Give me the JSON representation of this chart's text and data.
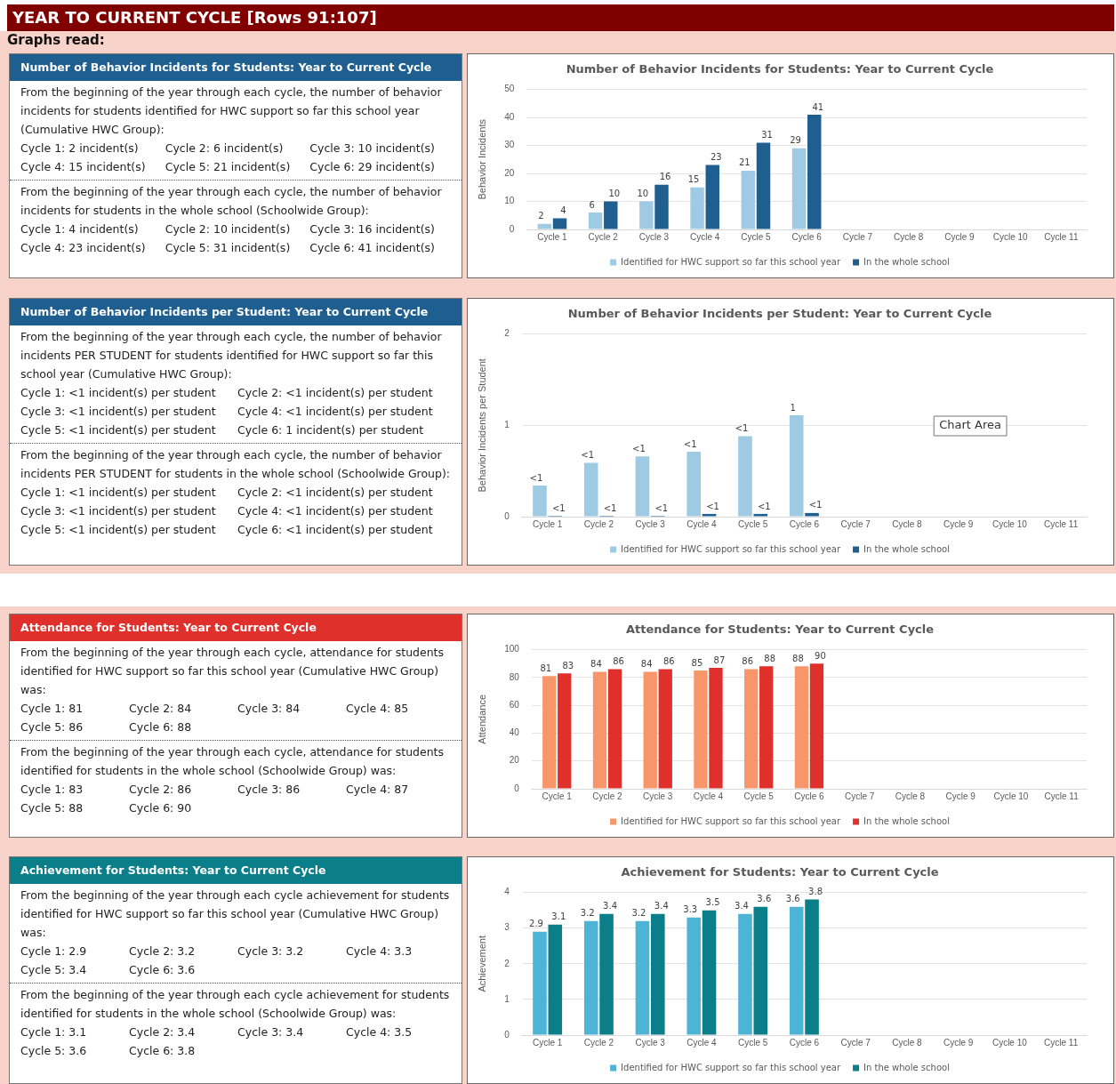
{
  "chart_data": [
    {
      "type": "other",
      "title": "YEAR TO CURRENT CYCLE [Rows 91:107]",
      "subtitle": "Graphs read:"
    },
    {
      "type": "other",
      "title": "Number of Behavior Incidents for Students: Year to Current Cycle",
      "annotations": [
        "From the beginning of the year through each cycle, the number of behavior incidents for students identified for HWC support so far this school year (Cumulative HWC Group):",
        "Cycle 1: 2 incident(s)",
        "Cycle 2: 6 incident(s)",
        "Cycle 3: 10 incident(s)",
        "Cycle 4: 15 incident(s)",
        "Cycle 5: 21 incident(s)",
        "Cycle 6: 29 incident(s)",
        "From the beginning of the year through each cycle, the number of behavior incidents for students in the whole school (Schoolwide Group):",
        "Cycle 1: 4 incident(s)",
        "Cycle 2: 10 incident(s)",
        "Cycle 3: 16 incident(s)",
        "Cycle 4: 23 incident(s)",
        "Cycle 5: 31 incident(s)",
        "Cycle 6: 41 incident(s)"
      ]
    },
    {
      "type": "bar",
      "title": "Number of Behavior Incidents for Students: Year to Current Cycle",
      "ylabel": "Behavior Incidents",
      "categories": [
        "Cycle 1",
        "Cycle 2",
        "Cycle 3",
        "Cycle 4",
        "Cycle 5",
        "Cycle 6",
        "Cycle 7",
        "Cycle 8",
        "Cycle 9",
        "Cycle 10",
        "Cycle 11"
      ],
      "series": [
        {
          "name": "Identified for HWC support so far this school year",
          "color": "#9ecae4",
          "values": [
            2,
            6,
            10,
            15,
            21,
            29,
            null,
            null,
            null,
            null,
            null
          ]
        },
        {
          "name": "In the whole school",
          "color": "#1f5f8f",
          "values": [
            4,
            10,
            16,
            23,
            31,
            41,
            null,
            null,
            null,
            null,
            null
          ]
        }
      ],
      "ylim": [
        0,
        50
      ],
      "yticks": [
        0,
        10,
        20,
        30,
        40,
        50
      ],
      "grid": "y",
      "legend": "bottom",
      "data_labels": true
    },
    {
      "type": "other",
      "title": "Number of Behavior Incidents per Student: Year to Current Cycle",
      "annotations": [
        "From the beginning of the year through each cycle, the number of behavior incidents PER STUDENT for students identified for HWC support so far this school year (Cumulative HWC Group):",
        "Cycle 1: <1 incident(s) per student",
        "Cycle 2: <1 incident(s) per student",
        "Cycle 3: <1 incident(s) per student",
        "Cycle 4: <1 incident(s) per student",
        "Cycle 5: <1 incident(s) per student",
        "Cycle 6: 1 incident(s) per student",
        "From the beginning of the year through each cycle, the number of behavior incidents PER STUDENT for students in the whole school (Schoolwide Group):",
        "Cycle 1: <1 incident(s) per student",
        "Cycle 2: <1 incident(s) per student",
        "Cycle 3: <1 incident(s) per student",
        "Cycle 4: <1 incident(s) per student",
        "Cycle 5: <1 incident(s) per student",
        "Cycle 6: <1 incident(s) per student"
      ]
    },
    {
      "type": "bar",
      "title": "Number of Behavior Incidents per Student: Year to Current Cycle",
      "ylabel": "Behavior Incidents per Student",
      "categories": [
        "Cycle 1",
        "Cycle 2",
        "Cycle 3",
        "Cycle 4",
        "Cycle 5",
        "Cycle 6",
        "Cycle 7",
        "Cycle 8",
        "Cycle 9",
        "Cycle 10",
        "Cycle 11"
      ],
      "series": [
        {
          "name": "Identified for HWC support so far this school year",
          "color": "#9ecae4",
          "values": [
            0.34,
            0.59,
            0.66,
            0.71,
            0.88,
            1.11,
            null,
            null,
            null,
            null,
            null
          ],
          "value_labels": [
            "<1",
            "<1",
            "<1",
            "<1",
            "<1",
            "1",
            null,
            null,
            null,
            null,
            null
          ]
        },
        {
          "name": "In the whole school",
          "color": "#1f5f8f",
          "values": [
            0.01,
            0.01,
            0.01,
            0.03,
            0.03,
            0.04,
            null,
            null,
            null,
            null,
            null
          ],
          "value_labels": [
            "<1",
            "<1",
            "<1",
            "<1",
            "<1",
            "<1",
            null,
            null,
            null,
            null,
            null
          ]
        }
      ],
      "ylim": [
        0,
        2
      ],
      "yticks": [
        0,
        1,
        2
      ],
      "grid": "y",
      "legend": "bottom",
      "annotations": [
        "Chart Area"
      ]
    },
    {
      "type": "other",
      "title": "Attendance for Students: Year to Current Cycle",
      "annotations": [
        "From the beginning of the year through each cycle, attendance for students identified for HWC support so far this school year (Cumulative HWC Group) was:",
        "Cycle 1: 81",
        "Cycle 2: 84",
        "Cycle 3: 84",
        "Cycle 4: 85",
        "Cycle 5: 86",
        "Cycle 6: 88",
        "From the beginning of the year through each cycle, attendance for students identified for students in the whole school (Schoolwide Group) was:",
        "Cycle 1: 83",
        "Cycle 2: 86",
        "Cycle 3: 86",
        "Cycle 4: 87",
        "Cycle 5: 88",
        "Cycle 6: 90"
      ]
    },
    {
      "type": "bar",
      "title": "Attendance for Students: Year to Current Cycle",
      "ylabel": "Attendance",
      "categories": [
        "Cycle 1",
        "Cycle 2",
        "Cycle 3",
        "Cycle 4",
        "Cycle 5",
        "Cycle 6",
        "Cycle 7",
        "Cycle 8",
        "Cycle 9",
        "Cycle 10",
        "Cycle 11"
      ],
      "series": [
        {
          "name": "Identified for HWC support so far this school year",
          "color": "#f7966b",
          "values": [
            81,
            84,
            84,
            85,
            86,
            88,
            null,
            null,
            null,
            null,
            null
          ]
        },
        {
          "name": "In the whole school",
          "color": "#e0302b",
          "values": [
            83,
            86,
            86,
            87,
            88,
            90,
            null,
            null,
            null,
            null,
            null
          ]
        }
      ],
      "ylim": [
        0,
        100
      ],
      "yticks": [
        0,
        20,
        40,
        60,
        80,
        100
      ],
      "grid": "y",
      "legend": "bottom",
      "data_labels": true
    },
    {
      "type": "other",
      "title": "Achievement for Students: Year to Current Cycle",
      "annotations": [
        "From the beginning of the year through each cycle achievement for students identified for HWC support so far this school year (Cumulative HWC Group) was:",
        "Cycle 1: 2.9",
        "Cycle 2: 3.2",
        "Cycle 3: 3.2",
        "Cycle 4: 3.3",
        "Cycle 5: 3.4",
        "Cycle 6: 3.6",
        "From the beginning of the year through each cycle achievement for students identified for students in the whole school (Schoolwide Group) was:",
        "Cycle 1: 3.1",
        "Cycle 2: 3.4",
        "Cycle 3: 3.4",
        "Cycle 4: 3.5",
        "Cycle 5: 3.6",
        "Cycle 6: 3.8"
      ]
    },
    {
      "type": "bar",
      "title": "Achievement for Students: Year to Current Cycle",
      "ylabel": "Achievement",
      "categories": [
        "Cycle 1",
        "Cycle 2",
        "Cycle 3",
        "Cycle 4",
        "Cycle 5",
        "Cycle 6",
        "Cycle 7",
        "Cycle 8",
        "Cycle 9",
        "Cycle 10",
        "Cycle 11"
      ],
      "series": [
        {
          "name": "Identified for HWC support so far this school year",
          "color": "#4db4d6",
          "values": [
            2.9,
            3.2,
            3.2,
            3.3,
            3.4,
            3.6,
            null,
            null,
            null,
            null,
            null
          ]
        },
        {
          "name": "In the whole school",
          "color": "#0b7f89",
          "values": [
            3.1,
            3.4,
            3.4,
            3.5,
            3.6,
            3.8,
            null,
            null,
            null,
            null,
            null
          ]
        }
      ],
      "ylim": [
        0,
        4
      ],
      "yticks": [
        0,
        1,
        2,
        3,
        4
      ],
      "grid": "y",
      "legend": "bottom",
      "data_labels": true
    }
  ]
}
